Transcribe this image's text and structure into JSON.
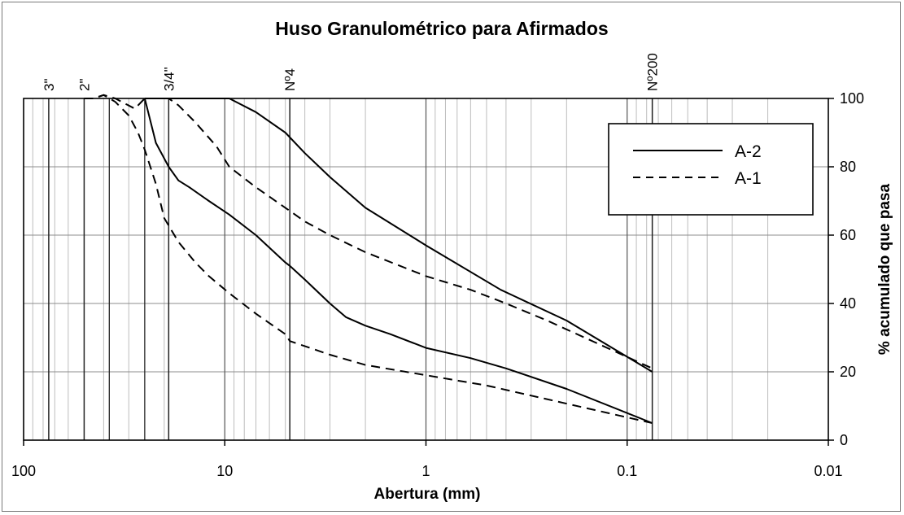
{
  "chart_data": {
    "type": "line",
    "title": "Huso Granulométrico para Afirmados",
    "xlabel": "Abertura (mm)",
    "ylabel": "% acumulado que pasa",
    "x_scale": "log",
    "x_reversed": true,
    "xlim": [
      100,
      0.01
    ],
    "ylim": [
      0,
      100
    ],
    "x_ticks": [
      {
        "value": 100,
        "label": "100"
      },
      {
        "value": 10,
        "label": "10"
      },
      {
        "value": 1,
        "label": "1"
      },
      {
        "value": 0.1,
        "label": "0.1"
      },
      {
        "value": 0.01,
        "label": "0.01"
      }
    ],
    "y_ticks": [
      {
        "value": 0,
        "label": "0"
      },
      {
        "value": 20,
        "label": "20"
      },
      {
        "value": 40,
        "label": "40"
      },
      {
        "value": 60,
        "label": "60"
      },
      {
        "value": 80,
        "label": "80"
      },
      {
        "value": 100,
        "label": "100"
      }
    ],
    "sieves": [
      {
        "label": "3\"",
        "value": 75
      },
      {
        "label": "2\"",
        "value": 50
      },
      {
        "label": "3/4\"",
        "value": 19
      },
      {
        "label": "Nº4",
        "value": 4.75
      },
      {
        "label": "Nº200",
        "value": 0.075
      }
    ],
    "extra_vlines": [
      37.5,
      25
    ],
    "grid": true,
    "legend_position": "top-right",
    "series": [
      {
        "name": "A-2",
        "line_style": "solid",
        "bands": [
          {
            "x": [
              25,
              10,
              9.5,
              7,
              5,
              4,
              3,
              2,
              1,
              0.425,
              0.2,
              0.075
            ],
            "y": [
              100,
              100,
              100,
              96,
              90,
              84,
              77,
              68,
              57,
              44,
              35,
              20
            ]
          },
          {
            "x": [
              25,
              22,
              19,
              17,
              15,
              12,
              9.5,
              7,
              5,
              4.75,
              4,
              3,
              2.5,
              2,
              1.5,
              1,
              0.6,
              0.4,
              0.2,
              0.075
            ],
            "y": [
              100,
              87,
              80,
              76,
              74,
              70,
              66,
              60,
              52,
              51,
              47,
              40,
              36,
              33.5,
              31,
              27,
              24,
              21,
              15,
              5
            ]
          }
        ]
      },
      {
        "name": "A-1",
        "line_style": "dashed",
        "bands": [
          {
            "x": [
              50,
              45,
              40,
              35,
              28,
              25,
              19,
              17,
              14,
              11,
              9.5,
              7,
              5,
              4,
              3,
              2,
              1,
              0.6,
              0.4,
              0.25,
              0.075
            ],
            "y": [
              100,
              100,
              101,
              100,
              97,
              100,
              100,
              98,
              93,
              86,
              80,
              74,
              68,
              64,
              60,
              55,
              48,
              44,
              40,
              35,
              21
            ]
          },
          {
            "x": [
              50,
              45,
              40,
              35,
              30,
              27,
              25,
              22,
              20,
              17,
              14,
              12,
              9.5,
              7,
              5,
              4.75,
              3,
              2,
              1,
              0.5,
              0.075
            ],
            "y": [
              100,
              100,
              101,
              99,
              95,
              90,
              85,
              75,
              65,
              58,
              52,
              48,
              43,
              37,
              31,
              29,
              25,
              22,
              19,
              16,
              5
            ]
          }
        ]
      }
    ]
  }
}
